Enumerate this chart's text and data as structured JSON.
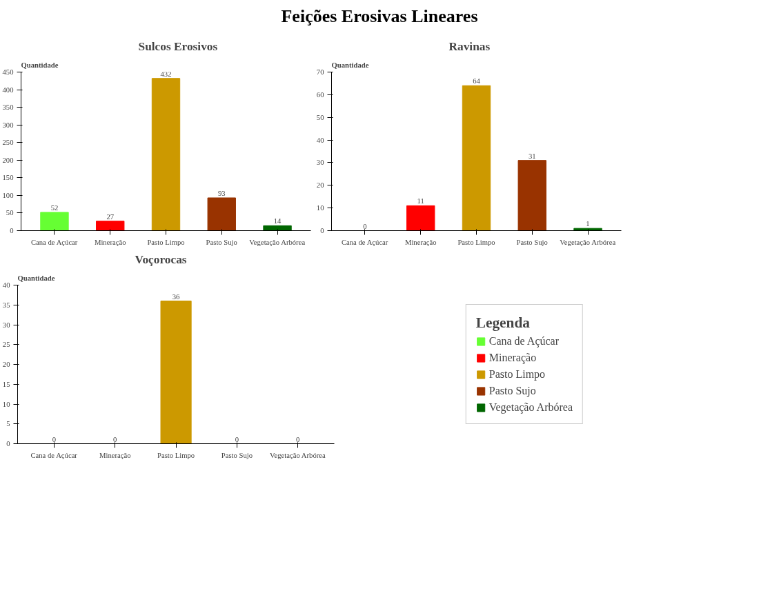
{
  "chart_data": [
    {
      "type": "other",
      "title": "Feições Erosivas Lineares"
    },
    {
      "type": "bar",
      "title": "Sulcos Erosivos",
      "ylabel": "Quantidade",
      "categories": [
        "Cana de Açúcar",
        "Mineração",
        "Pasto Limpo",
        "Pasto Sujo",
        "Vegetação Arbórea"
      ],
      "values": [
        52,
        27,
        432,
        93,
        14
      ],
      "colors": [
        "#66ff33",
        "#ff0000",
        "#cc9900",
        "#993300",
        "#006600"
      ],
      "ylim": [
        0,
        450
      ],
      "yticks": [
        0,
        50,
        100,
        150,
        200,
        250,
        300,
        350,
        400,
        450
      ],
      "data_labels": true,
      "grid": false
    },
    {
      "type": "bar",
      "title": "Ravinas",
      "ylabel": "Quantidade",
      "categories": [
        "Cana de Açúcar",
        "Mineração",
        "Pasto Limpo",
        "Pasto Sujo",
        "Vegetação Arbórea"
      ],
      "values": [
        0,
        11,
        64,
        31,
        1
      ],
      "colors": [
        "#66ff33",
        "#ff0000",
        "#cc9900",
        "#993300",
        "#006600"
      ],
      "ylim": [
        0,
        70
      ],
      "yticks": [
        0,
        10,
        20,
        30,
        40,
        50,
        60,
        70
      ],
      "data_labels": true,
      "grid": false
    },
    {
      "type": "bar",
      "title": "Voçorocas",
      "ylabel": "Quantidade",
      "categories": [
        "Cana de Açúcar",
        "Mineração",
        "Pasto Limpo",
        "Pasto Sujo",
        "Vegetação Arbórea"
      ],
      "ylim": [
        0,
        40
      ],
      "yticks": [
        0,
        5,
        10,
        15,
        20,
        25,
        30,
        35,
        40
      ],
      "data_labels": true,
      "grid": false,
      "legend": "right",
      "legend_title": "Legenda",
      "series": [
        {
          "name": "Cana de Açúcar",
          "color": "#66ff33",
          "values": [
            0,
            null,
            null,
            null,
            null
          ]
        },
        {
          "name": "Mineração",
          "color": "#ff0000",
          "values": [
            null,
            0,
            null,
            null,
            null
          ]
        },
        {
          "name": "Pasto Limpo",
          "color": "#cc9900",
          "values": [
            null,
            null,
            36,
            null,
            null
          ]
        },
        {
          "name": "Pasto Sujo",
          "color": "#993300",
          "values": [
            null,
            null,
            null,
            0,
            null
          ]
        },
        {
          "name": "Vegetação Arbórea",
          "color": "#006600",
          "values": [
            null,
            null,
            null,
            null,
            0
          ]
        }
      ]
    }
  ]
}
